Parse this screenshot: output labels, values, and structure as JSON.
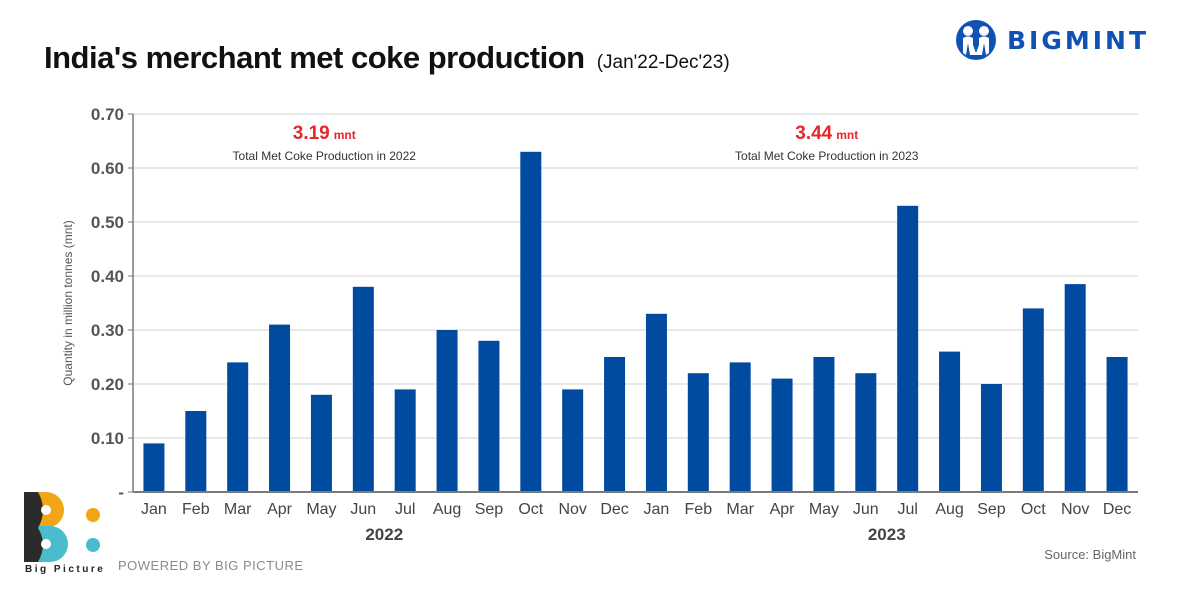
{
  "header": {
    "title": "India's merchant met coke production",
    "subtitle": "(Jan'22-Dec'23)",
    "brand": "BIGMINT"
  },
  "footer": {
    "powered_by": "POWERED BY BIG PICTURE",
    "bp_caption": "Big Picture",
    "source": "Source: BigMint"
  },
  "colors": {
    "bar": "#004aa0",
    "annotation_value": "#e8262a",
    "grid": "#e2e2e2",
    "axis": "#7a7a7a",
    "brand": "#0f52b4",
    "bp_orange": "#f2a516",
    "bp_teal": "#4bbccd",
    "bp_dark": "#2b2b2b"
  },
  "chart_data": {
    "type": "bar",
    "title": "India's merchant met coke production (Jan'22-Dec'23)",
    "xlabel": "",
    "ylabel": "Quantity in million tonnes (mnt)",
    "ylim": [
      0,
      0.7
    ],
    "yticks": [
      0,
      0.1,
      0.2,
      0.3,
      0.4,
      0.5,
      0.6,
      0.7
    ],
    "ytick_labels": [
      "-",
      "0.10",
      "0.20",
      "0.30",
      "0.40",
      "0.50",
      "0.60",
      "0.70"
    ],
    "grid": true,
    "legend": "none",
    "categories": [
      "Jan",
      "Feb",
      "Mar",
      "Apr",
      "May",
      "Jun",
      "Jul",
      "Aug",
      "Sep",
      "Oct",
      "Nov",
      "Dec",
      "Jan",
      "Feb",
      "Mar",
      "Apr",
      "May",
      "Jun",
      "Jul",
      "Aug",
      "Sep",
      "Oct",
      "Nov",
      "Dec"
    ],
    "groups": [
      {
        "label": "2022",
        "start": 0,
        "end": 11
      },
      {
        "label": "2023",
        "start": 12,
        "end": 23
      }
    ],
    "series": [
      {
        "name": "Met coke production (mnt)",
        "values": [
          0.09,
          0.15,
          0.24,
          0.31,
          0.18,
          0.38,
          0.19,
          0.3,
          0.28,
          0.63,
          0.19,
          0.25,
          0.33,
          0.22,
          0.24,
          0.21,
          0.25,
          0.22,
          0.53,
          0.26,
          0.2,
          0.34,
          0.385,
          0.25
        ]
      }
    ],
    "annotations": [
      {
        "value": "3.19",
        "unit": "mnt",
        "text": "Total Met Coke Production in 2022",
        "group": "2022"
      },
      {
        "value": "3.44",
        "unit": "mnt",
        "text": "Total Met Coke Production in 2023",
        "group": "2023"
      }
    ]
  }
}
